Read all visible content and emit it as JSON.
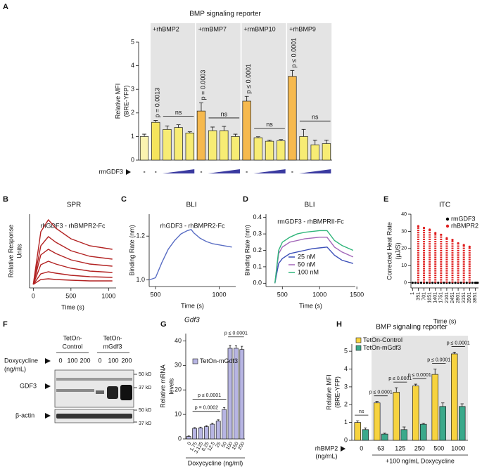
{
  "panel_labels": [
    "A",
    "B",
    "C",
    "D",
    "E",
    "F",
    "G",
    "H"
  ],
  "chart_data": [
    {
      "type": "bar",
      "title": "BMP signaling reporter",
      "y_label": [
        "Relative MFI",
        "(BRE-YFP)"
      ],
      "ylim": [
        0,
        5
      ],
      "yticks": [
        0,
        1,
        2,
        3,
        4,
        5
      ],
      "categories": [
        "-",
        "-",
        null,
        null,
        null,
        "-",
        null,
        null,
        null,
        "-",
        null,
        null,
        null,
        "-",
        null,
        null,
        null
      ],
      "values": [
        1.0,
        1.6,
        1.3,
        1.38,
        1.15,
        2.08,
        1.25,
        1.25,
        1.0,
        2.5,
        0.95,
        0.8,
        0.82,
        3.55,
        1.0,
        0.65,
        0.7
      ],
      "errors": [
        0.1,
        0.08,
        0.15,
        0.12,
        0.05,
        0.35,
        0.15,
        0.18,
        0.1,
        0.2,
        0.04,
        0.05,
        0.05,
        0.25,
        0.3,
        0.2,
        0.15
      ],
      "colors": [
        "#fbf3b0",
        "#f5e45c",
        "#f7ec74",
        "#f7ec74",
        "#f7ec74",
        "#f6b94e",
        "#f7ec74",
        "#f7ec74",
        "#f7ec74",
        "#f6b94e",
        "#f7ec74",
        "#f7ec74",
        "#f7ec74",
        "#f6b94e",
        "#f7ec74",
        "#f7ec74",
        "#f7ec74"
      ],
      "treatment_label": "rmGDF3",
      "groups": [
        {
          "label": "+rhBMP2",
          "start": 1,
          "end": 4
        },
        {
          "label": "+rmBMP7",
          "start": 5,
          "end": 8
        },
        {
          "label": "+rmBMP10",
          "start": 9,
          "end": 12
        },
        {
          "label": "+rhBMP9",
          "start": 13,
          "end": 16
        }
      ],
      "annotations": [
        {
          "text": "p = 0.0013",
          "at": 1
        },
        {
          "text": "ns",
          "from": 2,
          "to": 4
        },
        {
          "text": "p = 0.0003",
          "at": 5
        },
        {
          "text": "ns",
          "from": 6,
          "to": 8
        },
        {
          "text": "p ≤ 0.0001",
          "at": 9
        },
        {
          "text": "ns",
          "from": 10,
          "to": 12
        },
        {
          "text": "p ≤ 0.0001",
          "at": 13
        },
        {
          "text": "ns",
          "from": 14,
          "to": 16
        }
      ]
    },
    {
      "type": "line",
      "title": "SPR",
      "subtitle": "rhGDF3 - rhBMPR2-Fc",
      "y_label": [
        "Relative Response",
        "Units"
      ],
      "x_label": "Time (s)",
      "color": "#b22222",
      "xlim": [
        -50,
        1100
      ],
      "xticks": [
        0,
        500,
        1000
      ],
      "ylim": [
        -0.05,
        1
      ],
      "x": [
        0,
        100,
        200,
        300,
        500,
        750,
        1050
      ],
      "series": [
        {
          "values": [
            0,
            0.75,
            0.92,
            0.8,
            0.65,
            0.55,
            0.5
          ]
        },
        {
          "values": [
            0,
            0.55,
            0.68,
            0.6,
            0.48,
            0.4,
            0.36
          ]
        },
        {
          "values": [
            0,
            0.42,
            0.5,
            0.44,
            0.35,
            0.29,
            0.26
          ]
        },
        {
          "values": [
            0,
            0.28,
            0.33,
            0.29,
            0.23,
            0.19,
            0.17
          ]
        },
        {
          "values": [
            0,
            0.15,
            0.18,
            0.16,
            0.13,
            0.11,
            0.1
          ]
        },
        {
          "values": [
            0,
            0.07,
            0.08,
            0.07,
            0.06,
            0.05,
            0.05
          ]
        }
      ]
    },
    {
      "type": "line",
      "title": "BLI",
      "subtitle": "rhGDF3 - rhBMPR2-Fc",
      "y_label": "Binding Rate (nm)",
      "x_label": "Time (s)",
      "color": "#5a6ec4",
      "xlim": [
        450,
        1130
      ],
      "xticks": [
        500,
        1000
      ],
      "ylim": [
        0.97,
        1.3
      ],
      "yticks": [
        {
          "value": 1,
          "label": "1.0"
        },
        {
          "value": 1.2,
          "label": "1.2"
        }
      ],
      "x": [
        450,
        500,
        550,
        600,
        650,
        700,
        750,
        780,
        800,
        850,
        900,
        950,
        1000,
        1050,
        1100
      ],
      "series": [
        {
          "values": [
            1.0,
            1.01,
            1.08,
            1.14,
            1.18,
            1.21,
            1.225,
            1.23,
            1.215,
            1.19,
            1.175,
            1.165,
            1.16,
            1.155,
            1.15
          ]
        }
      ]
    },
    {
      "type": "line",
      "title": "BLI",
      "subtitle": "rmGDF3 - rhBMPRII-Fc",
      "y_label": "Binding Rate (nm)",
      "x_label": "Time (s)",
      "xlim": [
        280,
        1480
      ],
      "xticks": [
        500,
        1000,
        1500
      ],
      "ylim": [
        -0.02,
        0.42
      ],
      "yticks": [
        {
          "value": 0,
          "label": "0.0"
        },
        {
          "value": 0.1,
          "label": "0.1"
        },
        {
          "value": 0.2,
          "label": "0.2"
        },
        {
          "value": 0.3,
          "label": "0.3"
        },
        {
          "value": 0.4,
          "label": "0.4"
        }
      ],
      "x": [
        400,
        450,
        500,
        600,
        700,
        800,
        900,
        1000,
        1100,
        1200,
        1300,
        1450
      ],
      "series": [
        {
          "name": "25 nM",
          "color": "#3b4fb8",
          "values": [
            0,
            0.12,
            0.15,
            0.18,
            0.19,
            0.2,
            0.21,
            0.215,
            0.22,
            0.17,
            0.14,
            0.12
          ]
        },
        {
          "name": "50 nM",
          "color": "#a266b8",
          "values": [
            0,
            0.18,
            0.22,
            0.25,
            0.26,
            0.27,
            0.275,
            0.28,
            0.28,
            0.22,
            0.19,
            0.16
          ]
        },
        {
          "name": "100 nM",
          "color": "#2fb57a",
          "values": [
            0,
            0.2,
            0.25,
            0.28,
            0.3,
            0.31,
            0.315,
            0.32,
            0.32,
            0.26,
            0.23,
            0.2
          ]
        }
      ]
    },
    {
      "type": "scatter",
      "title": "ITC",
      "y_label": [
        "Corrected Heat Rate",
        "(μJ/S)"
      ],
      "x_label": "Time (s)",
      "xlim": [
        -100,
        4050
      ],
      "xticks": [
        1,
        351,
        701,
        1051,
        1401,
        1751,
        2101,
        2451,
        2801,
        3151,
        3501,
        3851
      ],
      "ylim": [
        -3,
        40
      ],
      "yticks": [
        0,
        10,
        20,
        30,
        40
      ],
      "series": [
        {
          "name": "rmGDF3",
          "color": "#000000",
          "x": [
            1,
            176,
            351,
            526,
            701,
            876,
            1051,
            1226,
            1401,
            1576,
            1751,
            1926,
            2101,
            2276,
            2451,
            2626,
            2801,
            2976,
            3151,
            3326,
            3501,
            3676,
            3851,
            3926,
            4000
          ],
          "values": [
            0,
            0,
            0,
            0,
            0,
            0,
            0,
            0,
            0,
            0,
            0,
            0,
            0,
            0,
            0,
            0,
            0,
            0,
            0,
            0,
            0,
            0,
            0,
            0,
            0
          ]
        },
        {
          "name": "rhBMPR2",
          "color": "#e02020",
          "x": [
            351,
            701,
            1051,
            1401,
            1751,
            2101,
            2451,
            2801,
            3151,
            3501
          ],
          "values": [
            33,
            32,
            31,
            29,
            28,
            26,
            25,
            23,
            22,
            21
          ]
        }
      ]
    },
    {
      "type": "bar",
      "title": "Gdf3",
      "y_label": [
        "Relative mRNA",
        "levels"
      ],
      "x_label": "Doxycycline (ng/ml)",
      "ylim": [
        0,
        43
      ],
      "yticks": [
        0,
        10,
        20,
        30,
        40
      ],
      "categories": [
        "0",
        "1.75",
        "3.125",
        "6.25",
        "12.5",
        "25",
        "50",
        "100",
        "150",
        "200"
      ],
      "values": [
        1,
        4.3,
        4.5,
        5,
        6,
        7.3,
        12,
        37,
        37,
        36.5
      ],
      "errors": [
        0.2,
        0.3,
        0.3,
        0.4,
        0.4,
        0.5,
        0.8,
        1.2,
        1,
        1.3
      ],
      "color": "#b7b5e3",
      "legend": "TetOn-mGdf3",
      "annotations": [
        {
          "text": "p = 0.0002",
          "from": 1,
          "to": 5
        },
        {
          "text": "p ≤ 0.0001",
          "from": 1,
          "to": 6
        },
        {
          "text": "p ≤ 0.0001",
          "from": 7,
          "to": 9
        }
      ]
    },
    {
      "type": "bar",
      "title": "BMP signaling reporter",
      "y_label": [
        "Relative MFI",
        "(BRE-YFP)"
      ],
      "x_label": [
        "rhBMP2",
        "(ng/mL)"
      ],
      "note": "+100 ng/mL Doxycycline",
      "ylim": [
        0,
        5.4
      ],
      "yticks": [
        0,
        1,
        2,
        3,
        4,
        5
      ],
      "categories": [
        "0",
        "63",
        "125",
        "250",
        "500",
        "1000"
      ],
      "series": [
        {
          "name": "TetOn-Control",
          "color": "#f7d33f",
          "values": [
            1.0,
            2.1,
            2.7,
            3.05,
            3.7,
            4.85
          ],
          "errors": [
            0.1,
            0.08,
            0.25,
            0.1,
            0.3,
            0.1
          ]
        },
        {
          "name": "TetOn-mGdf3",
          "color": "#3aa98b",
          "values": [
            0.6,
            0.35,
            0.6,
            0.9,
            1.9,
            1.9
          ],
          "errors": [
            0.1,
            0.05,
            0.15,
            0.05,
            0.2,
            0.15
          ]
        }
      ],
      "shaded_from": 1,
      "annotations": [
        {
          "text": "ns",
          "at": 0
        },
        {
          "text": "p ≤ 0.0001",
          "at": 1
        },
        {
          "text": "p ≤ 0.0001",
          "at": 2
        },
        {
          "text": "p ≤ 0.0001",
          "at": 3
        },
        {
          "text": "p ≤ 0.0001",
          "at": 4
        },
        {
          "text": "p ≤ 0.0001",
          "at": 5
        }
      ]
    }
  ],
  "blot": {
    "group_labels": [
      [
        "TetOn-",
        "Control"
      ],
      [
        "TetOn-",
        "mGdf3"
      ]
    ],
    "treatment_label": [
      "Doxycycline",
      "(ng/mL)"
    ],
    "lanes": [
      "0",
      "100",
      "200",
      "0",
      "100",
      "200"
    ],
    "bands": [
      "GDF3",
      "β-actin"
    ],
    "markers": [
      "50 kD",
      "37 kD",
      "50 kD",
      "37 kD"
    ]
  }
}
